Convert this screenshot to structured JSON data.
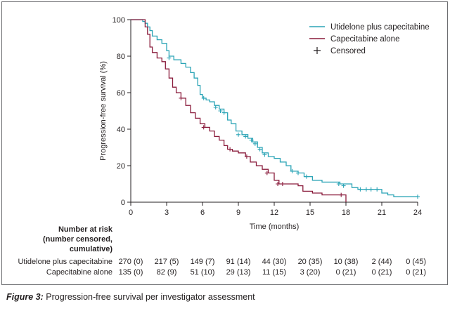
{
  "chart_data": {
    "type": "line",
    "title": "",
    "xlabel": "Time (months)",
    "ylabel": "Progression-free survival (%)",
    "xlim": [
      0,
      24
    ],
    "ylim": [
      0,
      100
    ],
    "x_ticks": [
      0,
      3,
      6,
      9,
      12,
      15,
      18,
      21,
      24
    ],
    "y_ticks": [
      0,
      20,
      40,
      60,
      80,
      100
    ],
    "colors": {
      "utidelone": "#2ba4b6",
      "capecitabine": "#8a1c3c",
      "axis": "#231f20"
    },
    "legend_position": "top-right",
    "series": [
      {
        "key": "utidelone",
        "name": "Utidelone plus capecitabine",
        "points": [
          [
            0,
            100
          ],
          [
            1.0,
            99
          ],
          [
            1.2,
            98
          ],
          [
            1.4,
            96
          ],
          [
            1.6,
            94
          ],
          [
            1.8,
            91
          ],
          [
            2.2,
            89
          ],
          [
            2.6,
            87
          ],
          [
            3.0,
            83
          ],
          [
            3.2,
            80
          ],
          [
            3.6,
            78
          ],
          [
            4.2,
            76
          ],
          [
            4.6,
            74
          ],
          [
            5.0,
            71
          ],
          [
            5.3,
            68
          ],
          [
            5.6,
            64
          ],
          [
            5.8,
            59
          ],
          [
            6.0,
            57
          ],
          [
            6.3,
            56
          ],
          [
            6.6,
            55
          ],
          [
            7.0,
            53
          ],
          [
            7.4,
            51
          ],
          [
            7.8,
            49
          ],
          [
            8.1,
            45
          ],
          [
            8.4,
            43
          ],
          [
            8.8,
            39
          ],
          [
            9.3,
            37
          ],
          [
            9.8,
            35
          ],
          [
            10.2,
            33
          ],
          [
            10.6,
            30
          ],
          [
            11.0,
            27
          ],
          [
            11.5,
            25
          ],
          [
            12.0,
            24
          ],
          [
            12.5,
            22
          ],
          [
            13.0,
            20
          ],
          [
            13.4,
            17
          ],
          [
            14.0,
            16
          ],
          [
            14.5,
            14
          ],
          [
            15.2,
            12
          ],
          [
            16.0,
            11
          ],
          [
            17.5,
            10
          ],
          [
            18.5,
            8
          ],
          [
            19.0,
            7
          ],
          [
            20.5,
            7
          ],
          [
            21.0,
            5
          ],
          [
            21.5,
            4
          ],
          [
            22.0,
            3
          ],
          [
            24.0,
            3
          ]
        ],
        "censored": [
          [
            3.2,
            79
          ],
          [
            6.1,
            57
          ],
          [
            7.1,
            52
          ],
          [
            7.5,
            50
          ],
          [
            7.8,
            49
          ],
          [
            9.0,
            37
          ],
          [
            9.6,
            36
          ],
          [
            10.1,
            34
          ],
          [
            10.4,
            32
          ],
          [
            10.8,
            29
          ],
          [
            11.2,
            26
          ],
          [
            13.5,
            17
          ],
          [
            14.0,
            16
          ],
          [
            14.7,
            14
          ],
          [
            17.4,
            10
          ],
          [
            17.8,
            9
          ],
          [
            19.2,
            7
          ],
          [
            19.7,
            7
          ],
          [
            20.1,
            7
          ],
          [
            20.6,
            7
          ],
          [
            24.0,
            3
          ]
        ]
      },
      {
        "key": "capecitabine",
        "name": "Capecitabine alone",
        "points": [
          [
            0,
            100
          ],
          [
            1.2,
            96
          ],
          [
            1.4,
            92
          ],
          [
            1.6,
            85
          ],
          [
            1.8,
            82
          ],
          [
            2.2,
            79
          ],
          [
            2.6,
            77
          ],
          [
            2.9,
            73
          ],
          [
            3.2,
            68
          ],
          [
            3.5,
            63
          ],
          [
            3.8,
            60
          ],
          [
            4.2,
            57
          ],
          [
            4.6,
            53
          ],
          [
            5.0,
            49
          ],
          [
            5.4,
            46
          ],
          [
            5.8,
            43
          ],
          [
            6.2,
            41
          ],
          [
            6.6,
            39
          ],
          [
            7.0,
            36
          ],
          [
            7.4,
            34
          ],
          [
            7.8,
            31
          ],
          [
            8.1,
            29
          ],
          [
            8.5,
            28
          ],
          [
            9.0,
            27
          ],
          [
            9.6,
            25
          ],
          [
            10.0,
            22
          ],
          [
            10.5,
            20
          ],
          [
            11.0,
            18
          ],
          [
            11.5,
            16
          ],
          [
            12.0,
            12
          ],
          [
            12.4,
            10
          ],
          [
            13.0,
            10
          ],
          [
            14.0,
            9
          ],
          [
            14.4,
            6
          ],
          [
            15.2,
            5
          ],
          [
            16.0,
            4
          ],
          [
            17.5,
            4
          ],
          [
            18.0,
            0
          ]
        ],
        "censored": [
          [
            4.2,
            57
          ],
          [
            6.1,
            41
          ],
          [
            8.3,
            29
          ],
          [
            9.7,
            25
          ],
          [
            11.4,
            16
          ],
          [
            12.3,
            10
          ],
          [
            12.7,
            10
          ],
          [
            17.6,
            4
          ]
        ]
      }
    ],
    "legend_censored_label": "Censored",
    "risk_table": {
      "header_lines": [
        "Number at risk",
        "(number censored,",
        "cumulative)"
      ],
      "rows": [
        {
          "label": "Utidelone plus capecitabine",
          "values": [
            "270 (0)",
            "217 (5)",
            "149 (7)",
            "91 (14)",
            "44 (30)",
            "20 (35)",
            "10 (38)",
            "2 (44)",
            "0 (45)"
          ]
        },
        {
          "label": "Capecitabine alone",
          "values": [
            "135 (0)",
            "82 (9)",
            "51 (10)",
            "29 (13)",
            "11 (15)",
            "3 (20)",
            "0 (21)",
            "0 (21)",
            "0 (21)"
          ]
        }
      ]
    }
  },
  "caption": {
    "figure_label": "Figure 3:",
    "text": " Progression-free survival per investigator assessment"
  }
}
